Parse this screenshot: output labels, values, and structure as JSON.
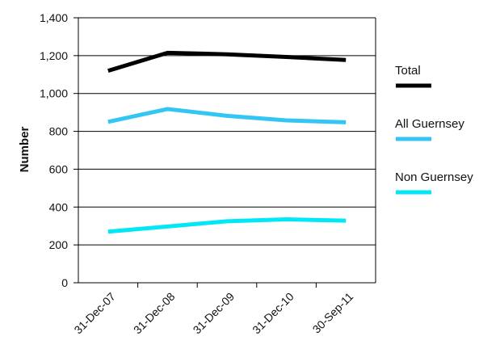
{
  "chart_data": {
    "type": "line",
    "title": "",
    "xlabel": "",
    "ylabel": "Number",
    "categories": [
      "31-Dec-07",
      "31-Dec-08",
      "31-Dec-09",
      "31-Dec-10",
      "30-Sep-11"
    ],
    "ylim": [
      0,
      1400
    ],
    "yticks": [
      0,
      200,
      400,
      600,
      800,
      1000,
      1200,
      1400
    ],
    "ytick_labels": [
      "0",
      "200",
      "400",
      "600",
      "800",
      "1,000",
      "1,200",
      "1,400"
    ],
    "grid": true,
    "legend_position": "right",
    "series": [
      {
        "name": "Total",
        "color": "#000000",
        "values": [
          1120,
          1215,
          1207,
          1193,
          1177
        ]
      },
      {
        "name": "All Guernsey",
        "color": "#33c6f4",
        "values": [
          850,
          918,
          882,
          858,
          848
        ]
      },
      {
        "name": "Non Guernsey",
        "color": "#00e7f5",
        "values": [
          270,
          297,
          325,
          335,
          328
        ]
      }
    ]
  }
}
